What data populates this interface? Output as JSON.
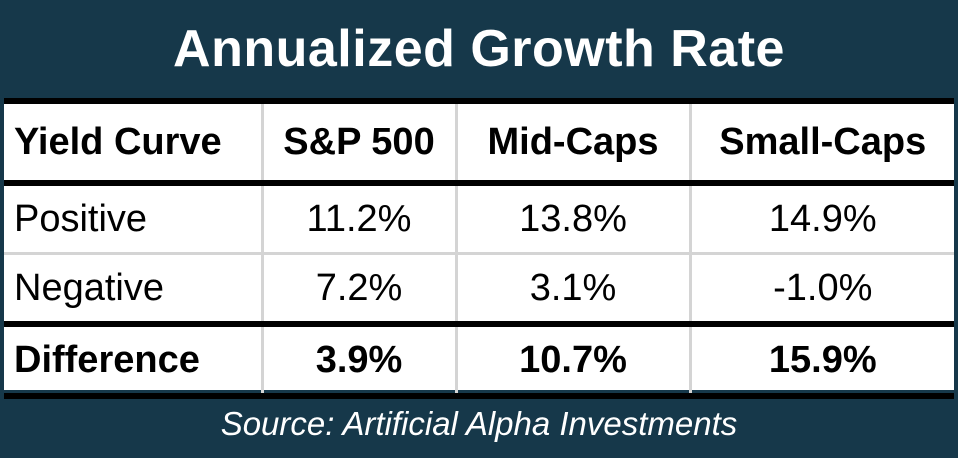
{
  "chart_data": {
    "type": "table",
    "title": "Annualized Growth Rate",
    "columns": [
      "Yield Curve",
      "S&P 500",
      "Mid-Caps",
      "Small-Caps"
    ],
    "rows": [
      {
        "label": "Positive",
        "cells": [
          "11.2%",
          "13.8%",
          "14.9%"
        ]
      },
      {
        "label": "Negative",
        "cells": [
          "7.2%",
          "3.1%",
          "-1.0%"
        ]
      },
      {
        "label": "Difference",
        "cells": [
          "3.9%",
          "10.7%",
          "15.9%"
        ]
      }
    ],
    "source": "Source: Artificial Alpha Investments"
  },
  "colors": {
    "header_background": "#16384a",
    "table_background": "#ffffff",
    "text_dark": "#000000",
    "text_light": "#ffffff"
  }
}
